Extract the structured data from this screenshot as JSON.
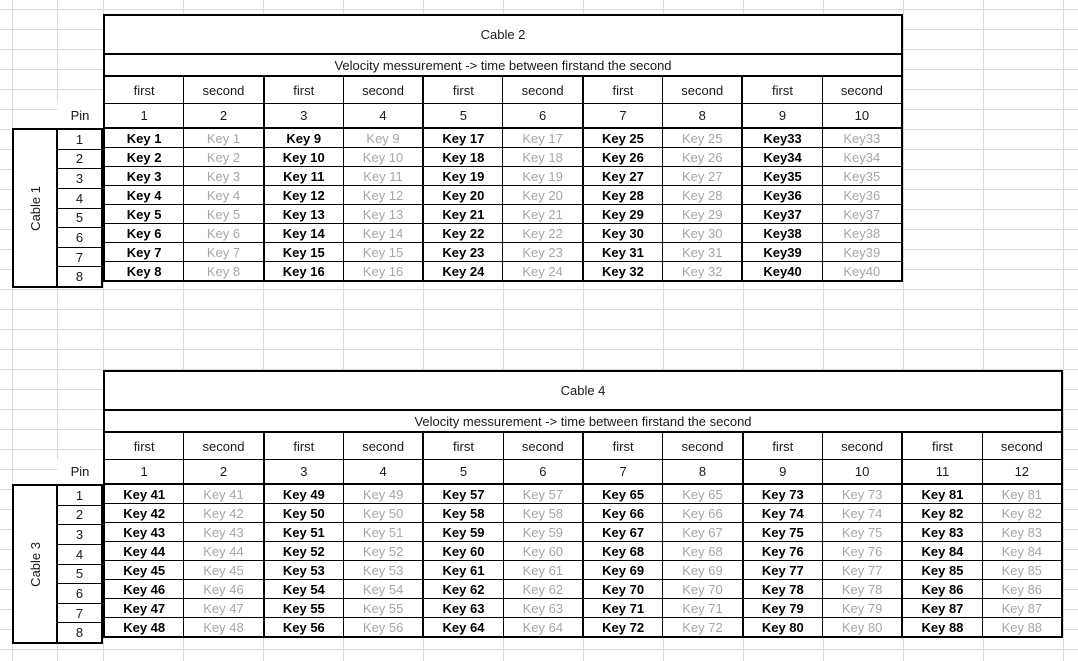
{
  "colors": {
    "gridline": "#d9d9d9",
    "border": "#000000",
    "text": "#1a1a1a",
    "first_key_text": "#000000",
    "second_key_text": "#a6a6a6",
    "background": "#ffffff"
  },
  "tables": [
    {
      "title": "Cable 2",
      "subtitle": "Velocity messurement -> time between firstand the second",
      "side_label": "Cable 1",
      "pin_header": "Pin",
      "pair_labels": [
        "first",
        "second",
        "first",
        "second",
        "first",
        "second",
        "first",
        "second",
        "first",
        "second"
      ],
      "column_numbers": [
        "1",
        "2",
        "3",
        "4",
        "5",
        "6",
        "7",
        "8",
        "9",
        "10"
      ],
      "pin_numbers": [
        "1",
        "2",
        "3",
        "4",
        "5",
        "6",
        "7",
        "8"
      ],
      "data_rows": [
        [
          "Key 1",
          "Key 1",
          "Key 9",
          "Key 9",
          "Key 17",
          "Key 17",
          "Key 25",
          "Key 25",
          "Key33",
          "Key33"
        ],
        [
          "Key 2",
          "Key 2",
          "Key 10",
          "Key 10",
          "Key 18",
          "Key 18",
          "Key 26",
          "Key 26",
          "Key34",
          "Key34"
        ],
        [
          "Key 3",
          "Key 3",
          "Key 11",
          "Key 11",
          "Key 19",
          "Key 19",
          "Key 27",
          "Key 27",
          "Key35",
          "Key35"
        ],
        [
          "Key 4",
          "Key 4",
          "Key 12",
          "Key 12",
          "Key 20",
          "Key 20",
          "Key 28",
          "Key 28",
          "Key36",
          "Key36"
        ],
        [
          "Key 5",
          "Key 5",
          "Key 13",
          "Key 13",
          "Key 21",
          "Key 21",
          "Key 29",
          "Key 29",
          "Key37",
          "Key37"
        ],
        [
          "Key 6",
          "Key 6",
          "Key 14",
          "Key 14",
          "Key 22",
          "Key 22",
          "Key 30",
          "Key 30",
          "Key38",
          "Key38"
        ],
        [
          "Key 7",
          "Key 7",
          "Key 15",
          "Key 15",
          "Key 23",
          "Key 23",
          "Key 31",
          "Key 31",
          "Key39",
          "Key39"
        ],
        [
          "Key 8",
          "Key 8",
          "Key 16",
          "Key 16",
          "Key 24",
          "Key 24",
          "Key 32",
          "Key 32",
          "Key40",
          "Key40"
        ]
      ]
    },
    {
      "title": "Cable 4",
      "subtitle": "Velocity messurement -> time between firstand the second",
      "side_label": "Cable 3",
      "pin_header": "Pin",
      "pair_labels": [
        "first",
        "second",
        "first",
        "second",
        "first",
        "second",
        "first",
        "second",
        "first",
        "second",
        "first",
        "second"
      ],
      "column_numbers": [
        "1",
        "2",
        "3",
        "4",
        "5",
        "6",
        "7",
        "8",
        "9",
        "10",
        "11",
        "12"
      ],
      "pin_numbers": [
        "1",
        "2",
        "3",
        "4",
        "5",
        "6",
        "7",
        "8"
      ],
      "data_rows": [
        [
          "Key 41",
          "Key 41",
          "Key 49",
          "Key 49",
          "Key 57",
          "Key 57",
          "Key 65",
          "Key 65",
          "Key 73",
          "Key 73",
          "Key 81",
          "Key 81"
        ],
        [
          "Key 42",
          "Key 42",
          "Key 50",
          "Key 50",
          "Key 58",
          "Key 58",
          "Key 66",
          "Key 66",
          "Key 74",
          "Key 74",
          "Key 82",
          "Key 82"
        ],
        [
          "Key 43",
          "Key 43",
          "Key 51",
          "Key 51",
          "Key 59",
          "Key 59",
          "Key 67",
          "Key 67",
          "Key 75",
          "Key 75",
          "Key 83",
          "Key 83"
        ],
        [
          "Key 44",
          "Key 44",
          "Key 52",
          "Key 52",
          "Key 60",
          "Key 60",
          "Key 68",
          "Key 68",
          "Key 76",
          "Key 76",
          "Key 84",
          "Key 84"
        ],
        [
          "Key 45",
          "Key 45",
          "Key 53",
          "Key 53",
          "Key 61",
          "Key 61",
          "Key 69",
          "Key 69",
          "Key 77",
          "Key 77",
          "Key 85",
          "Key 85"
        ],
        [
          "Key 46",
          "Key 46",
          "Key 54",
          "Key 54",
          "Key 62",
          "Key 62",
          "Key 70",
          "Key 70",
          "Key 78",
          "Key 78",
          "Key 86",
          "Key 86"
        ],
        [
          "Key 47",
          "Key 47",
          "Key 55",
          "Key 55",
          "Key 63",
          "Key 63",
          "Key 71",
          "Key 71",
          "Key 79",
          "Key 79",
          "Key 87",
          "Key 87"
        ],
        [
          "Key 48",
          "Key 48",
          "Key 56",
          "Key 56",
          "Key 64",
          "Key 64",
          "Key 72",
          "Key 72",
          "Key 80",
          "Key 80",
          "Key 88",
          "Key 88"
        ]
      ]
    }
  ]
}
